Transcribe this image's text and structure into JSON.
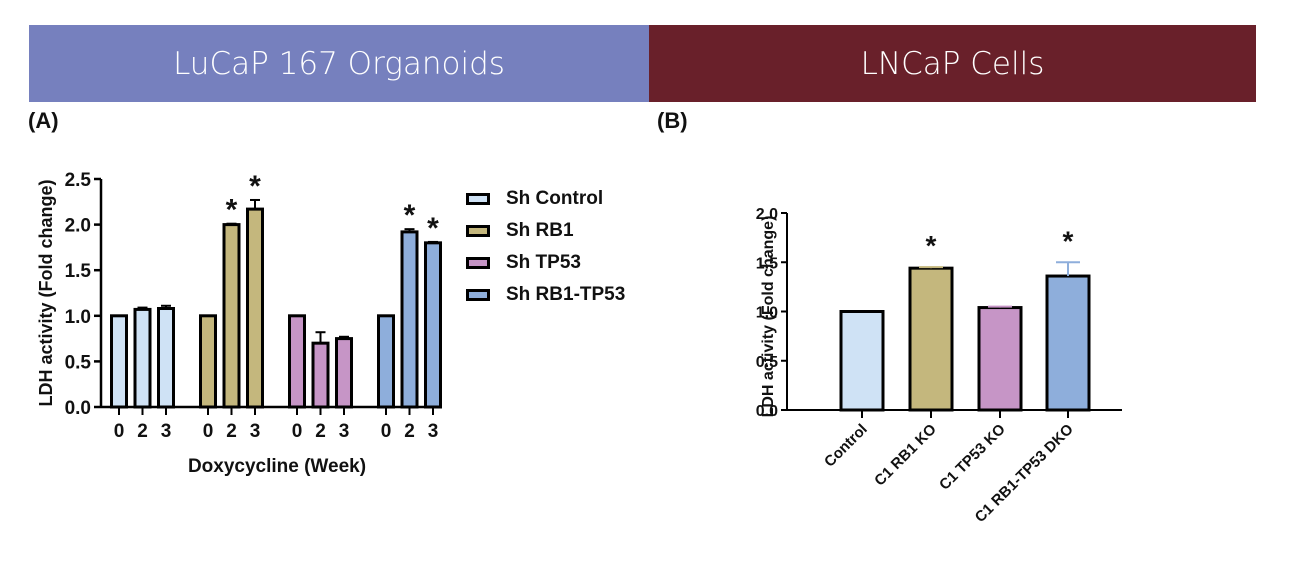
{
  "banners": {
    "a": {
      "label": "LuCaP 167 Organoids",
      "color": "#7680be"
    },
    "b": {
      "label": "LNCaP Cells",
      "color": "#69202a"
    }
  },
  "panel_labels": {
    "a": "(A)",
    "b": "(B)"
  },
  "chart_data": [
    {
      "type": "bar",
      "panel": "A",
      "title": "",
      "xlabel": "Doxycycline (Week)",
      "ylabel": "LDH activity (Fold change)",
      "ylim": [
        0,
        2.5
      ],
      "yticks": [
        "0.0",
        "0.5",
        "1.0",
        "1.5",
        "2.0",
        "2.5"
      ],
      "grid": false,
      "legend_position": "right",
      "categories": [
        "0",
        "2",
        "3"
      ],
      "series": [
        {
          "name": "Sh Control",
          "color": "#cfe2f5",
          "values": [
            1.0,
            1.07,
            1.08
          ],
          "errors": [
            0,
            0.02,
            0.03
          ],
          "significant": [
            false,
            false,
            false
          ]
        },
        {
          "name": "Sh RB1",
          "color": "#c4b77d",
          "values": [
            1.0,
            2.0,
            2.17
          ],
          "errors": [
            0,
            0.01,
            0.1
          ],
          "significant": [
            false,
            true,
            true
          ]
        },
        {
          "name": "Sh TP53",
          "color": "#c695c6",
          "values": [
            1.0,
            0.7,
            0.75
          ],
          "errors": [
            0,
            0.12,
            0.02
          ],
          "significant": [
            false,
            false,
            false
          ]
        },
        {
          "name": "Sh RB1-TP53",
          "color": "#8eaedb",
          "values": [
            1.0,
            1.92,
            1.8
          ],
          "errors": [
            0,
            0.03,
            0.01
          ],
          "significant": [
            false,
            true,
            true
          ]
        }
      ],
      "significance_marker": "*"
    },
    {
      "type": "bar",
      "panel": "B",
      "title": "",
      "xlabel": "",
      "ylabel": "LDH activity (Fold change)",
      "ylim": [
        0,
        2.0
      ],
      "yticks": [
        "0.0",
        "0.5",
        "1.0",
        "1.5",
        "2.0"
      ],
      "grid": false,
      "categories": [
        "Control",
        "C1 RB1 KO",
        "C1 TP53 KO",
        "C1 RB1-TP53 DKO"
      ],
      "colors": [
        "#cfe2f5",
        "#c4b77d",
        "#c695c6",
        "#8eaedb"
      ],
      "values": [
        1.0,
        1.44,
        1.04,
        1.36
      ],
      "errors": [
        0,
        0.01,
        0.01,
        0.14
      ],
      "significant": [
        false,
        true,
        false,
        true
      ],
      "significance_marker": "*"
    }
  ]
}
